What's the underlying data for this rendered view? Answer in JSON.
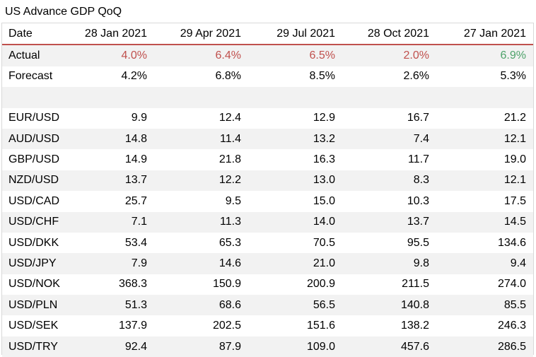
{
  "title": "US Advance GDP QoQ",
  "header": {
    "label": "Date",
    "dates": [
      "28 Jan 2021",
      "29 Apr 2021",
      "29 Jul 2021",
      "28 Oct 2021",
      "27 Jan 2021"
    ]
  },
  "actual": {
    "label": "Actual",
    "values": [
      "4.0%",
      "6.4%",
      "6.5%",
      "2.0%",
      "6.9%"
    ],
    "colors": [
      "#c0504d",
      "#c0504d",
      "#c0504d",
      "#c0504d",
      "#4ea26a"
    ]
  },
  "forecast": {
    "label": "Forecast",
    "values": [
      "4.2%",
      "6.8%",
      "8.5%",
      "2.6%",
      "5.3%"
    ]
  },
  "pairs": [
    {
      "label": "EUR/USD",
      "values": [
        "9.9",
        "12.4",
        "12.9",
        "16.7",
        "21.2"
      ]
    },
    {
      "label": "AUD/USD",
      "values": [
        "14.8",
        "11.4",
        "13.2",
        "7.4",
        "12.1"
      ]
    },
    {
      "label": "GBP/USD",
      "values": [
        "14.9",
        "21.8",
        "16.3",
        "11.7",
        "19.0"
      ]
    },
    {
      "label": "NZD/USD",
      "values": [
        "13.7",
        "12.2",
        "13.0",
        "8.3",
        "12.1"
      ]
    },
    {
      "label": "USD/CAD",
      "values": [
        "25.7",
        "9.5",
        "15.0",
        "10.3",
        "17.5"
      ]
    },
    {
      "label": "USD/CHF",
      "values": [
        "7.1",
        "11.3",
        "14.0",
        "13.7",
        "14.5"
      ]
    },
    {
      "label": "USD/DKK",
      "values": [
        "53.4",
        "65.3",
        "70.5",
        "95.5",
        "134.6"
      ]
    },
    {
      "label": "USD/JPY",
      "values": [
        "7.9",
        "14.6",
        "21.0",
        "9.8",
        "9.4"
      ]
    },
    {
      "label": "USD/NOK",
      "values": [
        "368.3",
        "150.9",
        "200.9",
        "211.5",
        "274.0"
      ]
    },
    {
      "label": "USD/PLN",
      "values": [
        "51.3",
        "68.6",
        "56.5",
        "140.8",
        "85.5"
      ]
    },
    {
      "label": "USD/SEK",
      "values": [
        "137.9",
        "202.5",
        "151.6",
        "138.2",
        "246.3"
      ]
    },
    {
      "label": "USD/TRY",
      "values": [
        "92.4",
        "87.9",
        "109.0",
        "457.6",
        "286.5"
      ]
    }
  ]
}
